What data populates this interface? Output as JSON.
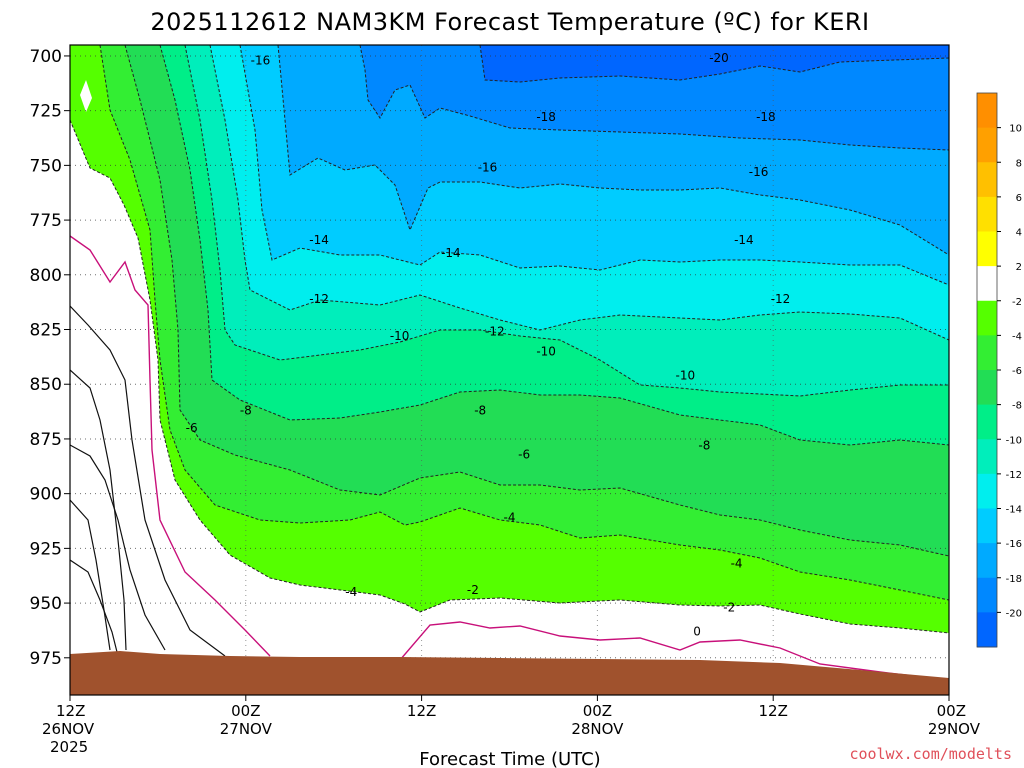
{
  "chart_data": {
    "type": "heatmap",
    "title": "2025112612 NAM3KM Forecast Temperature (ºC) for KERI",
    "xlabel": "Forecast Time (UTC)",
    "ylabel": "",
    "credit": "coolwx.com/modelts",
    "y_axis": {
      "reversed": true,
      "range": [
        695,
        992
      ],
      "ticks": [
        700,
        725,
        750,
        775,
        800,
        825,
        850,
        875,
        900,
        925,
        950,
        975
      ]
    },
    "x_axis": {
      "range": [
        0,
        60
      ],
      "ticks": [
        {
          "x": 0,
          "line1": "12Z",
          "line2": "26NOV",
          "line3": "2025"
        },
        {
          "x": 12,
          "line1": "00Z",
          "line2": "27NOV"
        },
        {
          "x": 24,
          "line1": "12Z",
          "line2": ""
        },
        {
          "x": 36,
          "line1": "00Z",
          "line2": "28NOV"
        },
        {
          "x": 48,
          "line1": "12Z",
          "line2": ""
        },
        {
          "x": 60,
          "line1": "00Z",
          "line2": "29NOV"
        }
      ]
    },
    "grid": true,
    "colorbar": {
      "labels": [
        "10",
        "8",
        "6",
        "4",
        "2",
        "-2",
        "-4",
        "-6",
        "-8",
        "-10",
        "-12",
        "-14",
        "-16",
        "-18",
        "-20"
      ],
      "colors": [
        "#ff8f00",
        "#ffa000",
        "#ffc000",
        "#ffe000",
        "#ffff00",
        "#ffffff",
        "#55ff00",
        "#33ee33",
        "#22dd55",
        "#00ee88",
        "#00eebb",
        "#00eeee",
        "#00ccff",
        "#00aaff",
        "#0088ff",
        "#0066ff"
      ]
    },
    "contour_labels": [
      {
        "x": 13.0,
        "p": 702,
        "text": "-16"
      },
      {
        "x": 44.3,
        "p": 701,
        "text": "-20"
      },
      {
        "x": 32.5,
        "p": 728,
        "text": "-18"
      },
      {
        "x": 47.5,
        "p": 728,
        "text": "-18"
      },
      {
        "x": 28.5,
        "p": 751,
        "text": "-16"
      },
      {
        "x": 47.0,
        "p": 753,
        "text": "-16"
      },
      {
        "x": 17.0,
        "p": 784,
        "text": "-14"
      },
      {
        "x": 26.0,
        "p": 790,
        "text": "-14"
      },
      {
        "x": 46.0,
        "p": 784,
        "text": "-14"
      },
      {
        "x": 17.0,
        "p": 811,
        "text": "-12"
      },
      {
        "x": 29.0,
        "p": 826,
        "text": "-12"
      },
      {
        "x": 48.5,
        "p": 811,
        "text": "-12"
      },
      {
        "x": 22.5,
        "p": 828,
        "text": "-10"
      },
      {
        "x": 32.5,
        "p": 835,
        "text": "-10"
      },
      {
        "x": 42.0,
        "p": 846,
        "text": "-10"
      },
      {
        "x": 8.3,
        "p": 870,
        "text": "-6"
      },
      {
        "x": 12.0,
        "p": 862,
        "text": "-8"
      },
      {
        "x": 28.0,
        "p": 862,
        "text": "-8"
      },
      {
        "x": 43.3,
        "p": 878,
        "text": "-8"
      },
      {
        "x": 31.0,
        "p": 882,
        "text": "-6"
      },
      {
        "x": 30.0,
        "p": 911,
        "text": "-4"
      },
      {
        "x": 45.5,
        "p": 932,
        "text": "-4"
      },
      {
        "x": 19.2,
        "p": 945,
        "text": "-4"
      },
      {
        "x": 27.5,
        "p": 944,
        "text": "-2"
      },
      {
        "x": 45.0,
        "p": 952,
        "text": "-2"
      },
      {
        "x": 42.8,
        "p": 963,
        "text": "0"
      }
    ]
  }
}
